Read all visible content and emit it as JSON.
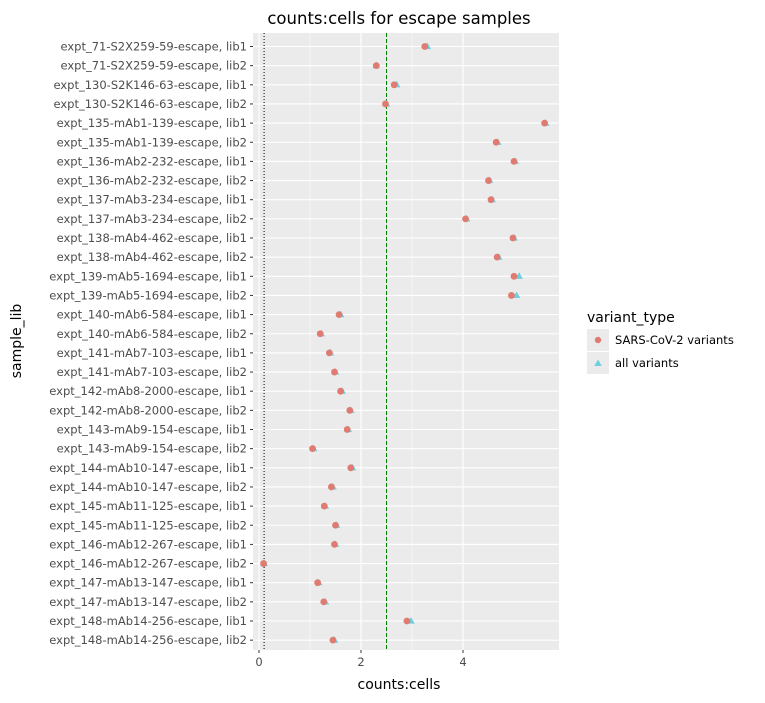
{
  "chart_data": {
    "type": "scatter",
    "title": "counts:cells for escape samples",
    "xlabel": "counts:cells",
    "ylabel": "sample_lib",
    "xlim": [
      -0.15,
      5.85
    ],
    "xticks": [
      0,
      2,
      4
    ],
    "x_tick_labels": [
      "0",
      "2",
      "4"
    ],
    "grid": true,
    "legend_position": "right",
    "colors": {
      "panel_background": "#ebebeb",
      "grid": "#ffffff",
      "sars_cov_2": "#e07b71",
      "all_variants": "#6dcfe0",
      "threshold_green": "#008000",
      "threshold_black": "#000000"
    },
    "reference_lines": [
      {
        "x": 0.1,
        "color": "#000000",
        "style": "dotted"
      },
      {
        "x": 2.5,
        "color": "#008000",
        "style": "dashed"
      }
    ],
    "legend": {
      "title": "variant_type",
      "entries": [
        {
          "label": "SARS-CoV-2 variants",
          "color": "#e07b71",
          "shape": "circle"
        },
        {
          "label": "all variants",
          "color": "#6dcfe0",
          "shape": "triangle"
        }
      ]
    },
    "categories": [
      "expt_71-S2X259-59-escape, lib1",
      "expt_71-S2X259-59-escape, lib2",
      "expt_130-S2K146-63-escape, lib1",
      "expt_130-S2K146-63-escape, lib2",
      "expt_135-mAb1-139-escape, lib1",
      "expt_135-mAb1-139-escape, lib2",
      "expt_136-mAb2-232-escape, lib1",
      "expt_136-mAb2-232-escape, lib2",
      "expt_137-mAb3-234-escape, lib1",
      "expt_137-mAb3-234-escape, lib2",
      "expt_138-mAb4-462-escape, lib1",
      "expt_138-mAb4-462-escape, lib2",
      "expt_139-mAb5-1694-escape, lib1",
      "expt_139-mAb5-1694-escape, lib2",
      "expt_140-mAb6-584-escape, lib1",
      "expt_140-mAb6-584-escape, lib2",
      "expt_141-mAb7-103-escape, lib1",
      "expt_141-mAb7-103-escape, lib2",
      "expt_142-mAb8-2000-escape, lib1",
      "expt_142-mAb8-2000-escape, lib2",
      "expt_143-mAb9-154-escape, lib1",
      "expt_143-mAb9-154-escape, lib2",
      "expt_144-mAb10-147-escape, lib1",
      "expt_144-mAb10-147-escape, lib2",
      "expt_145-mAb11-125-escape, lib1",
      "expt_145-mAb11-125-escape, lib2",
      "expt_146-mAb12-267-escape, lib1",
      "expt_146-mAb12-267-escape, lib2",
      "expt_147-mAb13-147-escape, lib1",
      "expt_147-mAb13-147-escape, lib2",
      "expt_148-mAb14-256-escape, lib1",
      "expt_148-mAb14-256-escape, lib2"
    ],
    "series": [
      {
        "name": "SARS-CoV-2 variants",
        "values": [
          3.25,
          2.3,
          2.65,
          2.48,
          5.6,
          4.65,
          5.0,
          4.5,
          4.55,
          4.05,
          4.98,
          4.67,
          5.0,
          4.95,
          1.57,
          1.2,
          1.38,
          1.48,
          1.6,
          1.78,
          1.73,
          1.05,
          1.8,
          1.42,
          1.28,
          1.5,
          1.48,
          0.09,
          1.15,
          1.27,
          2.9,
          1.45
        ]
      },
      {
        "name": "all variants",
        "values": [
          3.3,
          2.3,
          2.7,
          2.5,
          5.62,
          4.68,
          5.02,
          4.52,
          4.57,
          4.07,
          5.0,
          4.7,
          5.1,
          5.05,
          1.6,
          1.22,
          1.4,
          1.5,
          1.63,
          1.8,
          1.75,
          1.07,
          1.83,
          1.45,
          1.3,
          1.52,
          1.5,
          0.1,
          1.17,
          1.3,
          2.98,
          1.48
        ]
      }
    ]
  }
}
